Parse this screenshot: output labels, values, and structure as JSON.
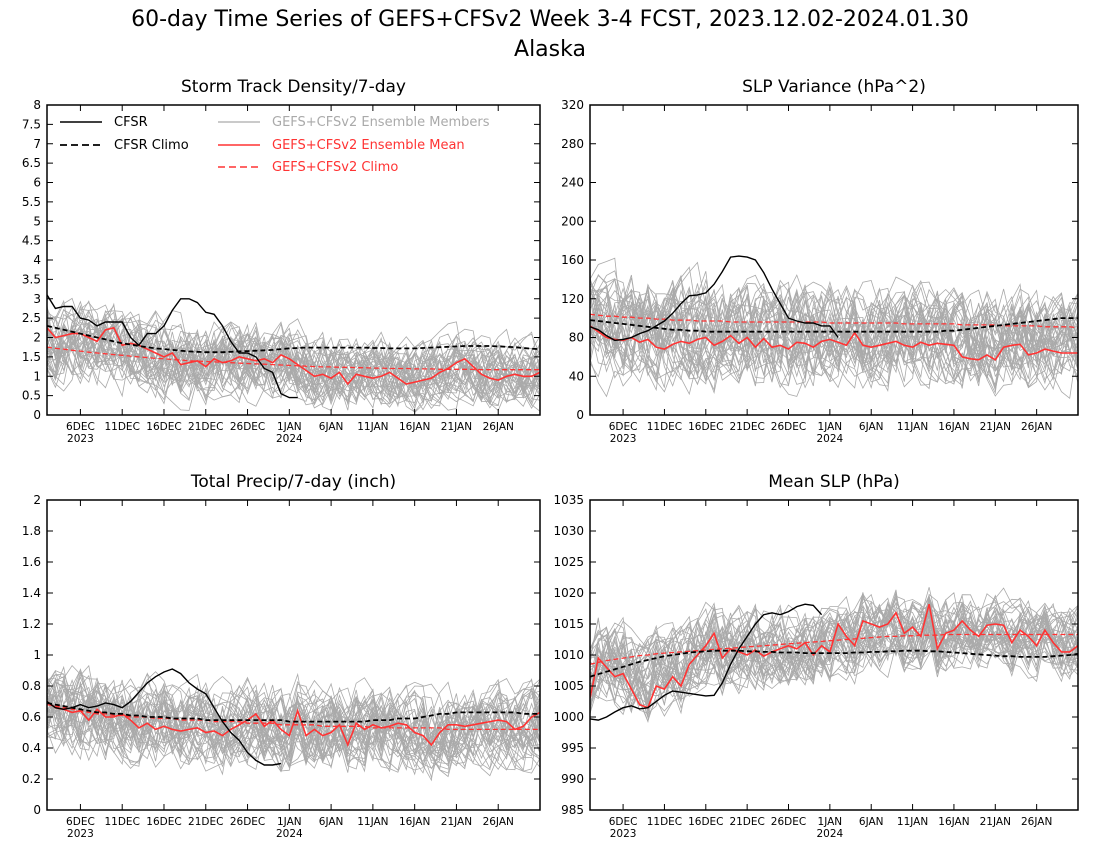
{
  "figure": {
    "title_line1": "60-day Time Series of GEFS+CFSv2 Week 3-4 FCST, 2023.12.02-2024.01.30",
    "title_line2": "Alaska"
  },
  "colors": {
    "cfsr": "#000000",
    "members": "#aaaaaa",
    "ens_mean": "#ff3333",
    "gefs_climo": "#ff3333"
  },
  "legend": {
    "cfsr": "CFSR",
    "cfsr_climo": "CFSR Climo",
    "members": "GEFS+CFSv2 Ensemble Members",
    "ens_mean": "GEFS+CFSv2 Ensemble Mean",
    "gefs_climo": "GEFS+CFSv2 Climo"
  },
  "chart_data": [
    {
      "type": "line",
      "title": "Storm Track Density/7-day",
      "x_tick_labels": [
        "6DEC",
        "11DEC",
        "16DEC",
        "21DEC",
        "26DEC",
        "1JAN",
        "6JAN",
        "11JAN",
        "16JAN",
        "21JAN",
        "26JAN"
      ],
      "x_tick_sublabels": [
        "2023",
        "",
        "",
        "",
        "",
        "2024",
        "",
        "",
        "",
        "",
        ""
      ],
      "x_days": 60,
      "ylim": [
        0,
        8
      ],
      "y_ticks": [
        0,
        0.5,
        1,
        1.5,
        2,
        2.5,
        3,
        3.5,
        4,
        4.5,
        5,
        5.5,
        6,
        6.5,
        7,
        7.5,
        8
      ],
      "y_tick_labels": [
        "0",
        "0.5",
        "1",
        "1.5",
        "2",
        "2.5",
        "3",
        "3.5",
        "4",
        "4.5",
        "5",
        "5.5",
        "6",
        "6.5",
        "7",
        "7.5",
        "8"
      ],
      "legend_shown": true,
      "members_spread": [
        0.3,
        1.9,
        1.5,
        1.2
      ],
      "series": {
        "cfsr": [
          3.1,
          2.75,
          2.8,
          2.8,
          2.5,
          2.45,
          2.3,
          2.4,
          2.4,
          2.4,
          2.0,
          1.8,
          2.1,
          2.1,
          2.3,
          2.7,
          3.0,
          3.0,
          2.9,
          2.65,
          2.6,
          2.3,
          1.9,
          1.6,
          1.6,
          1.5,
          1.2,
          1.1,
          0.55,
          0.45,
          0.45
        ],
        "cfsr_climo": [
          2.3,
          2.25,
          2.2,
          2.15,
          2.1,
          2.05,
          2.0,
          1.95,
          1.9,
          1.85,
          1.82,
          1.78,
          1.75,
          1.72,
          1.7,
          1.68,
          1.66,
          1.64,
          1.63,
          1.62,
          1.62,
          1.62,
          1.63,
          1.64,
          1.65,
          1.66,
          1.67,
          1.68,
          1.7,
          1.72,
          1.73,
          1.74,
          1.74,
          1.74,
          1.74,
          1.74,
          1.74,
          1.74,
          1.74,
          1.73,
          1.73,
          1.72,
          1.72,
          1.72,
          1.72,
          1.73,
          1.74,
          1.75,
          1.76,
          1.77,
          1.78,
          1.78,
          1.78,
          1.78,
          1.77,
          1.76,
          1.75,
          1.73,
          1.71,
          1.7
        ],
        "ens_mean": [
          2.25,
          2.0,
          2.05,
          2.1,
          2.1,
          2.0,
          1.9,
          2.2,
          2.25,
          1.8,
          1.85,
          1.8,
          1.7,
          1.6,
          1.5,
          1.6,
          1.3,
          1.35,
          1.4,
          1.25,
          1.45,
          1.35,
          1.4,
          1.5,
          1.45,
          1.4,
          1.45,
          1.35,
          1.55,
          1.45,
          1.3,
          1.15,
          1.0,
          1.05,
          0.95,
          1.1,
          0.8,
          1.05,
          1.0,
          0.95,
          1.0,
          1.1,
          0.95,
          0.8,
          0.85,
          0.9,
          0.95,
          1.1,
          1.2,
          1.35,
          1.45,
          1.25,
          1.05,
          0.95,
          0.9,
          1.0,
          1.05,
          1.0,
          1.0,
          1.1
        ],
        "gefs_climo": [
          1.75,
          1.72,
          1.7,
          1.67,
          1.65,
          1.62,
          1.6,
          1.58,
          1.56,
          1.54,
          1.52,
          1.5,
          1.48,
          1.46,
          1.45,
          1.43,
          1.42,
          1.4,
          1.39,
          1.38,
          1.37,
          1.36,
          1.35,
          1.34,
          1.33,
          1.32,
          1.31,
          1.3,
          1.29,
          1.28,
          1.27,
          1.26,
          1.25,
          1.24,
          1.24,
          1.23,
          1.23,
          1.22,
          1.22,
          1.21,
          1.21,
          1.2,
          1.2,
          1.2,
          1.19,
          1.19,
          1.19,
          1.18,
          1.18,
          1.18,
          1.18,
          1.18,
          1.17,
          1.17,
          1.17,
          1.17,
          1.17,
          1.17,
          1.17,
          1.17
        ]
      }
    },
    {
      "type": "line",
      "title": "SLP Variance (hPa^2)",
      "x_tick_labels": [
        "6DEC",
        "11DEC",
        "16DEC",
        "21DEC",
        "26DEC",
        "1JAN",
        "6JAN",
        "11JAN",
        "16JAN",
        "21JAN",
        "26JAN"
      ],
      "x_tick_sublabels": [
        "2023",
        "",
        "",
        "",
        "",
        "2024",
        "",
        "",
        "",
        "",
        ""
      ],
      "x_days": 60,
      "ylim": [
        0,
        320
      ],
      "y_ticks": [
        0,
        40,
        80,
        120,
        160,
        200,
        240,
        280,
        320
      ],
      "y_tick_labels": [
        "0",
        "40",
        "80",
        "120",
        "160",
        "200",
        "240",
        "280",
        "320"
      ],
      "legend_shown": false,
      "members_spread": [
        20,
        100,
        85,
        75
      ],
      "series": {
        "cfsr": [
          91,
          88,
          82,
          77,
          78,
          80,
          84,
          87,
          92,
          97,
          105,
          115,
          123,
          124,
          126,
          135,
          148,
          163,
          164,
          163,
          160,
          147,
          130,
          115,
          100,
          97,
          95,
          95,
          92,
          92,
          80
        ],
        "cfsr_climo": [
          98,
          97,
          96,
          95,
          94,
          93,
          92,
          91,
          90,
          89,
          88,
          88,
          87,
          87,
          86,
          86,
          86,
          86,
          86,
          86,
          86,
          86,
          86,
          86,
          86,
          86,
          86,
          86,
          86,
          86,
          86,
          86,
          86,
          86,
          86,
          86,
          86,
          86,
          86,
          86,
          86,
          86,
          86,
          87,
          87,
          88,
          89,
          90,
          91,
          92,
          93,
          94,
          95,
          96,
          97,
          98,
          99,
          100,
          100,
          100
        ],
        "ens_mean": [
          92,
          86,
          80,
          78,
          77,
          80,
          75,
          78,
          70,
          68,
          73,
          76,
          74,
          78,
          80,
          72,
          76,
          82,
          74,
          80,
          70,
          79,
          70,
          72,
          68,
          75,
          74,
          70,
          76,
          78,
          75,
          72,
          85,
          72,
          70,
          72,
          74,
          76,
          72,
          70,
          75,
          72,
          74,
          73,
          72,
          60,
          58,
          57,
          62,
          57,
          70,
          72,
          73,
          62,
          64,
          68,
          66,
          64,
          64,
          64
        ],
        "gefs_climo": [
          104,
          103,
          102,
          102,
          101,
          101,
          100,
          100,
          99,
          99,
          98,
          98,
          98,
          97,
          97,
          97,
          97,
          96,
          96,
          96,
          96,
          96,
          96,
          96,
          96,
          96,
          96,
          96,
          96,
          95,
          95,
          95,
          95,
          95,
          95,
          95,
          95,
          95,
          94,
          94,
          94,
          94,
          94,
          94,
          94,
          93,
          93,
          93,
          93,
          93,
          92,
          92,
          92,
          92,
          92,
          91,
          91,
          91,
          91,
          90
        ]
      }
    },
    {
      "type": "line",
      "title": "Total Precip/7-day (inch)",
      "x_tick_labels": [
        "6DEC",
        "11DEC",
        "16DEC",
        "21DEC",
        "26DEC",
        "1JAN",
        "6JAN",
        "11JAN",
        "16JAN",
        "21JAN",
        "26JAN"
      ],
      "x_tick_sublabels": [
        "2023",
        "",
        "",
        "",
        "",
        "2024",
        "",
        "",
        "",
        "",
        ""
      ],
      "x_days": 60,
      "ylim": [
        0,
        2
      ],
      "y_ticks": [
        0,
        0.2,
        0.4,
        0.6,
        0.8,
        1,
        1.2,
        1.4,
        1.6,
        1.8,
        2
      ],
      "y_tick_labels": [
        "0",
        "0.2",
        "0.4",
        "0.6",
        "0.8",
        "1",
        "1.2",
        "1.4",
        "1.6",
        "1.8",
        "2"
      ],
      "legend_shown": false,
      "members_spread": [
        0.15,
        0.5,
        0.45,
        0.35
      ],
      "series": {
        "cfsr": [
          0.7,
          0.66,
          0.65,
          0.66,
          0.68,
          0.66,
          0.67,
          0.69,
          0.68,
          0.66,
          0.7,
          0.76,
          0.82,
          0.86,
          0.89,
          0.91,
          0.88,
          0.82,
          0.78,
          0.75,
          0.66,
          0.57,
          0.5,
          0.45,
          0.37,
          0.32,
          0.29,
          0.29,
          0.3
        ],
        "cfsr_climo": [
          0.69,
          0.68,
          0.67,
          0.66,
          0.65,
          0.64,
          0.63,
          0.63,
          0.62,
          0.62,
          0.61,
          0.61,
          0.6,
          0.6,
          0.6,
          0.59,
          0.59,
          0.59,
          0.59,
          0.58,
          0.58,
          0.58,
          0.58,
          0.58,
          0.58,
          0.58,
          0.58,
          0.58,
          0.58,
          0.57,
          0.57,
          0.57,
          0.57,
          0.57,
          0.57,
          0.57,
          0.57,
          0.57,
          0.57,
          0.58,
          0.58,
          0.58,
          0.59,
          0.59,
          0.59,
          0.6,
          0.61,
          0.62,
          0.62,
          0.63,
          0.63,
          0.63,
          0.63,
          0.63,
          0.63,
          0.63,
          0.63,
          0.62,
          0.62,
          0.62
        ],
        "ens_mean": [
          0.7,
          0.66,
          0.65,
          0.63,
          0.64,
          0.58,
          0.65,
          0.6,
          0.6,
          0.62,
          0.58,
          0.53,
          0.56,
          0.52,
          0.54,
          0.52,
          0.51,
          0.52,
          0.53,
          0.5,
          0.51,
          0.48,
          0.52,
          0.55,
          0.58,
          0.62,
          0.54,
          0.58,
          0.52,
          0.48,
          0.64,
          0.48,
          0.52,
          0.48,
          0.5,
          0.55,
          0.42,
          0.56,
          0.52,
          0.55,
          0.53,
          0.54,
          0.56,
          0.55,
          0.5,
          0.48,
          0.42,
          0.5,
          0.55,
          0.55,
          0.54,
          0.55,
          0.56,
          0.57,
          0.58,
          0.57,
          0.52,
          0.54,
          0.6,
          0.63
        ],
        "gefs_climo": [
          0.68,
          0.67,
          0.66,
          0.65,
          0.64,
          0.63,
          0.62,
          0.62,
          0.61,
          0.61,
          0.6,
          0.6,
          0.6,
          0.59,
          0.59,
          0.59,
          0.58,
          0.58,
          0.58,
          0.58,
          0.57,
          0.57,
          0.57,
          0.57,
          0.56,
          0.56,
          0.56,
          0.56,
          0.55,
          0.55,
          0.55,
          0.55,
          0.55,
          0.54,
          0.54,
          0.54,
          0.54,
          0.54,
          0.54,
          0.53,
          0.53,
          0.53,
          0.53,
          0.53,
          0.53,
          0.53,
          0.53,
          0.53,
          0.52,
          0.52,
          0.52,
          0.52,
          0.52,
          0.52,
          0.52,
          0.52,
          0.52,
          0.52,
          0.52,
          0.52
        ]
      }
    },
    {
      "type": "line",
      "title": "Mean SLP (hPa)",
      "x_tick_labels": [
        "6DEC",
        "11DEC",
        "16DEC",
        "21DEC",
        "26DEC",
        "1JAN",
        "6JAN",
        "11JAN",
        "16JAN",
        "21JAN",
        "26JAN"
      ],
      "x_tick_sublabels": [
        "2023",
        "",
        "",
        "",
        "",
        "2024",
        "",
        "",
        "",
        "",
        ""
      ],
      "x_days": 60,
      "ylim": [
        985,
        1035
      ],
      "y_ticks": [
        985,
        990,
        995,
        1000,
        1005,
        1010,
        1015,
        1020,
        1025,
        1030,
        1035
      ],
      "y_tick_labels": [
        "985",
        "990",
        "995",
        "1000",
        "1005",
        "1010",
        "1015",
        "1020",
        "1025",
        "1030",
        "1035"
      ],
      "legend_shown": false,
      "members_spread": [
        3,
        12,
        10,
        8
      ],
      "series": {
        "cfsr": [
          999.7,
          999.5,
          1000,
          1000.8,
          1001.5,
          1001.8,
          1001.3,
          1001.5,
          1002.5,
          1003.5,
          1004.2,
          1004.0,
          1003.8,
          1003.6,
          1003.4,
          1003.5,
          1005.5,
          1008.5,
          1011.0,
          1013.0,
          1015.0,
          1016.5,
          1016.8,
          1016.5,
          1017.0,
          1017.8,
          1018.2,
          1018.0,
          1016.5
        ],
        "cfsr_climo": [
          1006.5,
          1006.9,
          1007.3,
          1007.7,
          1008.1,
          1008.5,
          1008.9,
          1009.2,
          1009.5,
          1009.8,
          1010.0,
          1010.2,
          1010.4,
          1010.5,
          1010.6,
          1010.7,
          1010.7,
          1010.7,
          1010.7,
          1010.6,
          1010.6,
          1010.5,
          1010.5,
          1010.4,
          1010.4,
          1010.4,
          1010.3,
          1010.3,
          1010.3,
          1010.3,
          1010.3,
          1010.3,
          1010.4,
          1010.4,
          1010.5,
          1010.5,
          1010.6,
          1010.6,
          1010.7,
          1010.7,
          1010.7,
          1010.6,
          1010.6,
          1010.5,
          1010.4,
          1010.3,
          1010.2,
          1010.1,
          1010.0,
          1009.9,
          1009.8,
          1009.8,
          1009.7,
          1009.7,
          1009.7,
          1009.7,
          1009.8,
          1009.9,
          1010.0,
          1010.2
        ],
        "ens_mean": [
          1003.0,
          1009.5,
          1008.0,
          1006.5,
          1007.0,
          1004.5,
          1002.0,
          1001.5,
          1005.0,
          1004.5,
          1006.5,
          1005.0,
          1008.5,
          1010.0,
          1011.5,
          1013.5,
          1009.5,
          1011.0,
          1010.5,
          1010.0,
          1010.8,
          1009.8,
          1010.5,
          1011.0,
          1011.5,
          1011.0,
          1012.0,
          1010.0,
          1011.5,
          1010.5,
          1015.0,
          1013.0,
          1011.5,
          1015.5,
          1015.0,
          1014.5,
          1015.0,
          1016.8,
          1013.5,
          1014.5,
          1013.0,
          1018.2,
          1011.0,
          1013.5,
          1014.0,
          1015.5,
          1014.0,
          1013.0,
          1014.8,
          1015.0,
          1014.8,
          1012.0,
          1014.0,
          1013.0,
          1011.5,
          1014.0,
          1012.0,
          1010.5,
          1010.5,
          1011.5
        ],
        "gefs_climo": [
          1008.5,
          1008.8,
          1009.1,
          1009.3,
          1009.5,
          1009.7,
          1009.9,
          1010.0,
          1010.2,
          1010.3,
          1010.4,
          1010.5,
          1010.6,
          1010.7,
          1010.8,
          1010.9,
          1011.0,
          1011.1,
          1011.2,
          1011.3,
          1011.4,
          1011.5,
          1011.6,
          1011.7,
          1011.8,
          1011.9,
          1012.0,
          1012.1,
          1012.2,
          1012.3,
          1012.4,
          1012.5,
          1012.6,
          1012.7,
          1012.8,
          1012.9,
          1013.0,
          1013.0,
          1013.1,
          1013.1,
          1013.2,
          1013.2,
          1013.2,
          1013.3,
          1013.3,
          1013.3,
          1013.3,
          1013.3,
          1013.3,
          1013.3,
          1013.3,
          1013.3,
          1013.3,
          1013.3,
          1013.3,
          1013.3,
          1013.3,
          1013.3,
          1013.3,
          1013.3
        ]
      }
    }
  ]
}
